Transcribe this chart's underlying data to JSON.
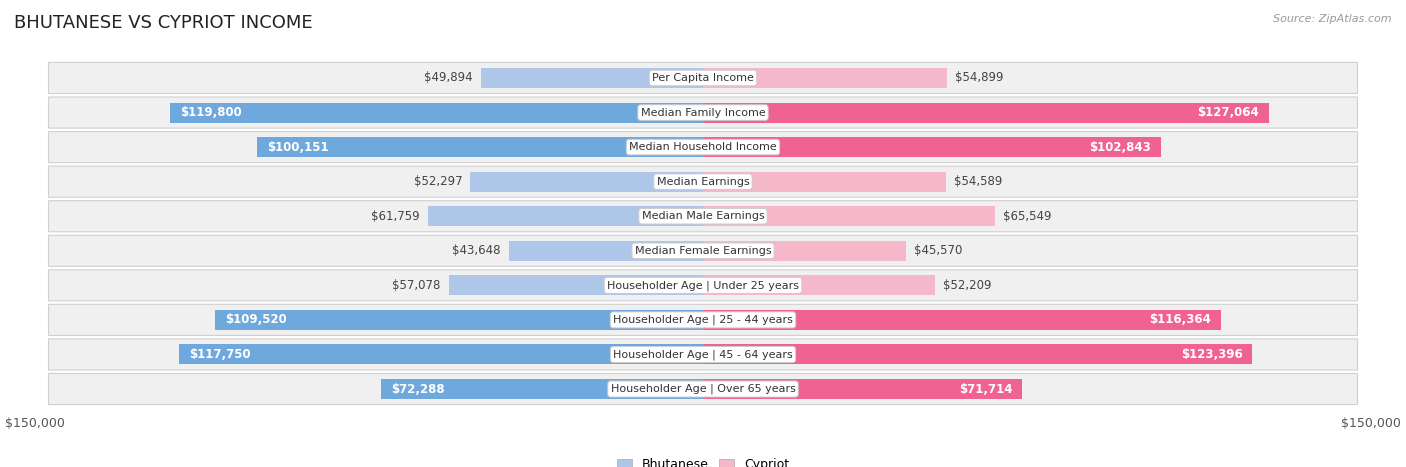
{
  "title": "BHUTANESE VS CYPRIOT INCOME",
  "source": "Source: ZipAtlas.com",
  "categories": [
    "Per Capita Income",
    "Median Family Income",
    "Median Household Income",
    "Median Earnings",
    "Median Male Earnings",
    "Median Female Earnings",
    "Householder Age | Under 25 years",
    "Householder Age | 25 - 44 years",
    "Householder Age | 45 - 64 years",
    "Householder Age | Over 65 years"
  ],
  "bhutanese": [
    49894,
    119800,
    100151,
    52297,
    61759,
    43648,
    57078,
    109520,
    117750,
    72288
  ],
  "cypriot": [
    54899,
    127064,
    102843,
    54589,
    65549,
    45570,
    52209,
    116364,
    123396,
    71714
  ],
  "bhutanese_labels": [
    "$49,894",
    "$119,800",
    "$100,151",
    "$52,297",
    "$61,759",
    "$43,648",
    "$57,078",
    "$109,520",
    "$117,750",
    "$72,288"
  ],
  "cypriot_labels": [
    "$54,899",
    "$127,064",
    "$102,843",
    "$54,589",
    "$65,549",
    "$45,570",
    "$52,209",
    "$116,364",
    "$123,396",
    "$71,714"
  ],
  "max_val": 150000,
  "blue_light": "#aec6e8",
  "blue_dark": "#6fa8dc",
  "pink_light": "#f5b8ca",
  "pink_dark": "#f06292",
  "row_bg": "#f0f0f0",
  "page_bg": "#ffffff",
  "bar_height": 0.58,
  "title_fontsize": 13,
  "tick_fontsize": 9,
  "label_fontsize": 8.5,
  "cat_fontsize": 8,
  "inside_label_threshold": 70000
}
